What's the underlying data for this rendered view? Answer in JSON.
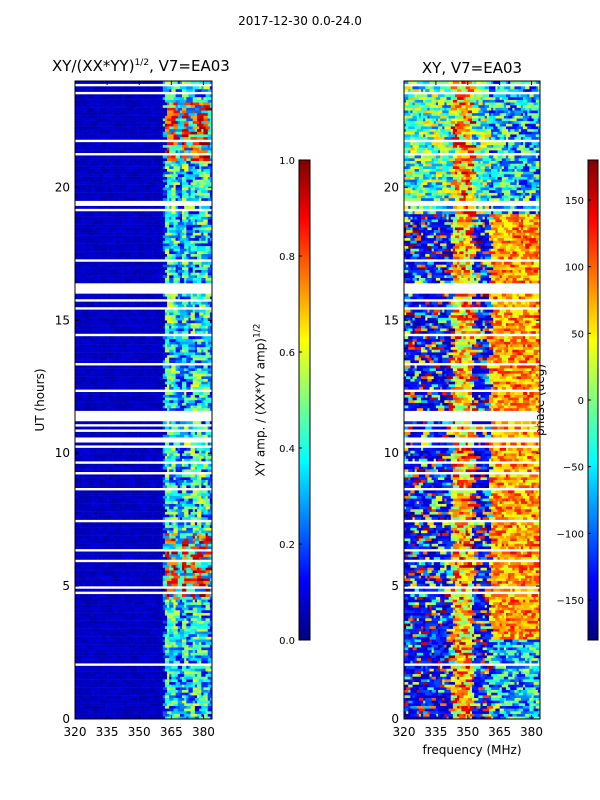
{
  "figure": {
    "suptitle": "2017-12-30 0.0-24.0",
    "xlabel": "frequency (MHz)"
  },
  "colors": {
    "jet_stops": [
      "#00007f",
      "#0000ff",
      "#007fff",
      "#00ffff",
      "#7fff7f",
      "#ffff00",
      "#ff7f00",
      "#ff0000",
      "#7f0000"
    ],
    "gap": "#ffffff",
    "frame": "#000000"
  },
  "chart_data": [
    {
      "id": "amp",
      "type": "heatmap",
      "title_main": "XY/(XX*YY)",
      "title_exp": "1/2",
      "title_suffix": ", V7=EA03",
      "xlabel": "",
      "ylabel": "UT (hours)",
      "x_range": [
        320,
        384
      ],
      "y_range": [
        0,
        24
      ],
      "x_ticks": [
        320,
        335,
        350,
        365,
        380
      ],
      "y_ticks": [
        0,
        5,
        10,
        15,
        20
      ],
      "colorbar": {
        "label_main": "XY amp. / (XX*YY amp)",
        "label_exp": "1/2",
        "range": [
          0.0,
          1.0
        ],
        "ticks": [
          "0.0",
          "0.2",
          "0.4",
          "0.6",
          "0.8",
          "1.0"
        ]
      },
      "description_of_data": "mostly low amplitude (~0.05) below 360 MHz; bright vertical stripes near 363, 371, 378 MHz reaching ~0.9 during hours 4.5-7 and 21-23",
      "bright_columns_mhz": [
        363,
        366,
        371,
        375,
        378,
        381
      ],
      "bright_hours": [
        [
          4.5,
          7.0
        ],
        [
          21.0,
          23.2
        ]
      ]
    },
    {
      "id": "phase",
      "type": "heatmap",
      "title": "XY, V7=EA03",
      "xlabel": "frequency (MHz)",
      "ylabel": "",
      "x_range": [
        320,
        384
      ],
      "y_range": [
        0,
        24
      ],
      "x_ticks": [
        320,
        335,
        350,
        365,
        380
      ],
      "y_ticks": [
        0,
        5,
        10,
        15,
        20
      ],
      "colorbar": {
        "label": "phase (deg)",
        "range": [
          -180,
          180
        ],
        "ticks": [
          "−150",
          "−100",
          "−50",
          "0",
          "50",
          "100",
          "150"
        ]
      },
      "description_of_data": "noisy phase below ~360 MHz, smoother orange/yellow structure (~+60 to +120 deg) above 360 MHz, dark blue (-160 deg) bands late in the day"
    }
  ]
}
